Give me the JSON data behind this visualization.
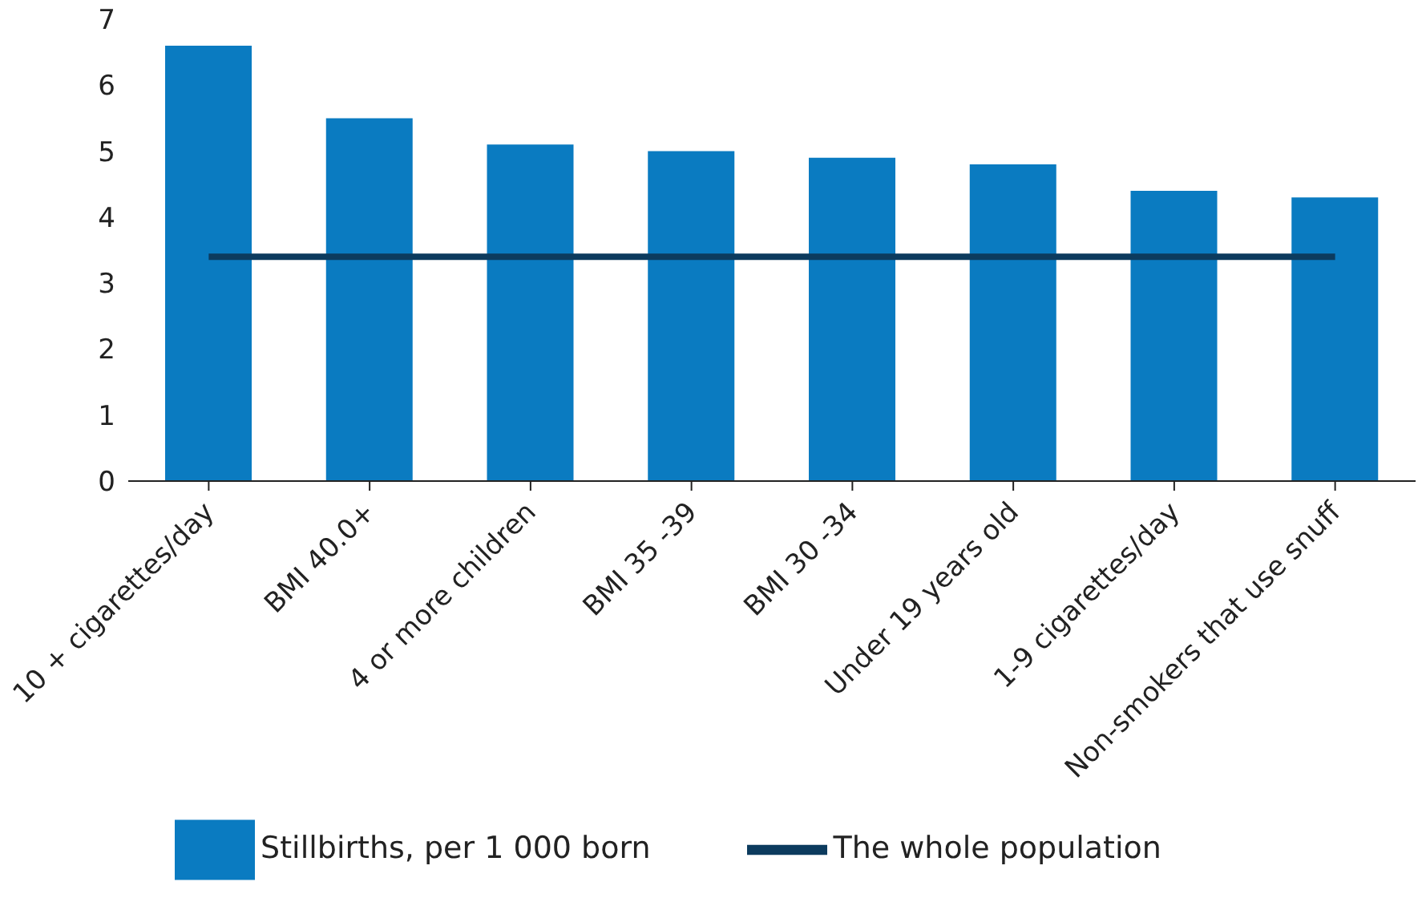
{
  "chart_data": {
    "type": "bar",
    "categories": [
      "10 + cigarettes/day",
      "BMI 40.0+",
      "4 or more children",
      "BMI 35 -39",
      "BMI 30 -34",
      "Under 19 years old",
      "1-9 cigarettes/day",
      "Non-smokers that use snuff"
    ],
    "series": [
      {
        "name": "Stillbirths, per 1 000 born",
        "color": "#0a7bc1",
        "values": [
          6.6,
          5.5,
          5.1,
          5.0,
          4.9,
          4.8,
          4.4,
          4.3
        ]
      },
      {
        "name": "The whole population",
        "type": "line",
        "color": "#0c3b5e",
        "values": [
          3.4,
          3.4,
          3.4,
          3.4,
          3.4,
          3.4,
          3.4,
          3.4
        ]
      }
    ],
    "ylim": [
      0,
      7
    ],
    "yticks": [
      0,
      1,
      2,
      3,
      4,
      5,
      6,
      7
    ],
    "grid": false,
    "legend": "bottom",
    "marker": "none",
    "line_style": "solid"
  }
}
